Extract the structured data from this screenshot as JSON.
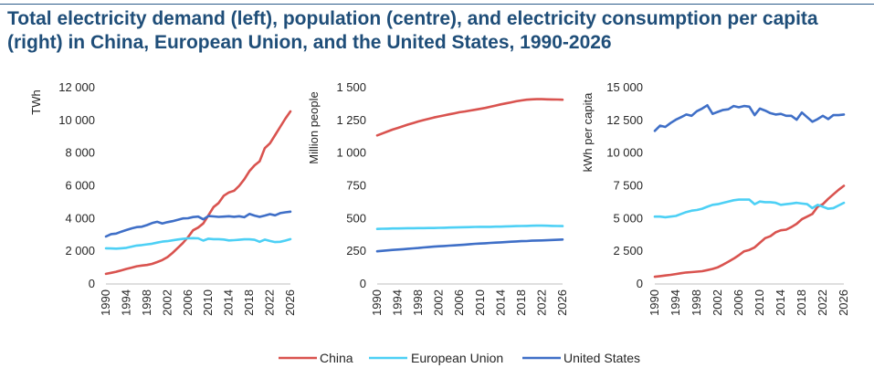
{
  "title": "Total electricity demand (left), population (centre), and electricity consumption per capita (right) in China, European Union, and the United States, 1990-2026",
  "colors": {
    "China": "#d9534f",
    "European Union": "#4dd0f5",
    "United States": "#3f6fc7",
    "axis": "#bfbfbf"
  },
  "legend": {
    "placement": "bottom-center",
    "entries": [
      "China",
      "European Union",
      "United States"
    ]
  },
  "chart_data": [
    {
      "type": "line",
      "title": "",
      "ylabel": "TWh",
      "xlabel": "",
      "ylim": [
        0,
        12000
      ],
      "yticks": [
        0,
        2000,
        4000,
        6000,
        8000,
        10000,
        12000
      ],
      "ytick_labels": [
        "0",
        "2 000",
        "4 000",
        "6 000",
        "8 000",
        "10 000",
        "12 000"
      ],
      "xlim": [
        1990,
        2026
      ],
      "xticks": [
        1990,
        1994,
        1998,
        2002,
        2006,
        2010,
        2014,
        2018,
        2022,
        2026
      ],
      "grid": false,
      "x": [
        1990,
        1991,
        1992,
        1993,
        1994,
        1995,
        1996,
        1997,
        1998,
        1999,
        2000,
        2001,
        2002,
        2003,
        2004,
        2005,
        2006,
        2007,
        2008,
        2009,
        2010,
        2011,
        2012,
        2013,
        2014,
        2015,
        2016,
        2017,
        2018,
        2019,
        2020,
        2021,
        2022,
        2023,
        2024,
        2025,
        2026
      ],
      "series": [
        {
          "name": "China",
          "values": [
            620,
            680,
            750,
            830,
            920,
            1000,
            1080,
            1130,
            1160,
            1230,
            1340,
            1460,
            1640,
            1900,
            2200,
            2500,
            2860,
            3280,
            3450,
            3700,
            4200,
            4700,
            4950,
            5400,
            5600,
            5700,
            6000,
            6400,
            6900,
            7250,
            7500,
            8300,
            8600,
            9100,
            9600,
            10100,
            10550
          ]
        },
        {
          "name": "European Union",
          "values": [
            2180,
            2170,
            2160,
            2180,
            2210,
            2280,
            2350,
            2380,
            2420,
            2460,
            2530,
            2590,
            2620,
            2670,
            2720,
            2760,
            2790,
            2800,
            2790,
            2650,
            2770,
            2740,
            2740,
            2720,
            2660,
            2680,
            2700,
            2730,
            2730,
            2700,
            2580,
            2710,
            2630,
            2560,
            2580,
            2650,
            2740
          ]
        },
        {
          "name": "United States",
          "values": [
            2900,
            3050,
            3080,
            3200,
            3300,
            3400,
            3480,
            3500,
            3600,
            3720,
            3800,
            3700,
            3780,
            3840,
            3920,
            4010,
            4020,
            4090,
            4120,
            3950,
            4150,
            4130,
            4100,
            4120,
            4140,
            4110,
            4140,
            4080,
            4280,
            4180,
            4100,
            4180,
            4270,
            4200,
            4330,
            4380,
            4420
          ]
        }
      ]
    },
    {
      "type": "line",
      "title": "",
      "ylabel": "Million people",
      "xlabel": "",
      "ylim": [
        0,
        1500
      ],
      "yticks": [
        0,
        250,
        500,
        750,
        1000,
        1250,
        1500
      ],
      "ytick_labels": [
        "0",
        "250",
        "500",
        "750",
        "1 000",
        "1 250",
        "1 500"
      ],
      "xlim": [
        1990,
        2026
      ],
      "xticks": [
        1990,
        1994,
        1998,
        2002,
        2006,
        2010,
        2014,
        2018,
        2022,
        2026
      ],
      "grid": false,
      "x": [
        1990,
        1991,
        1992,
        1993,
        1994,
        1995,
        1996,
        1997,
        1998,
        1999,
        2000,
        2001,
        2002,
        2003,
        2004,
        2005,
        2006,
        2007,
        2008,
        2009,
        2010,
        2011,
        2012,
        2013,
        2014,
        2015,
        2016,
        2017,
        2018,
        2019,
        2020,
        2021,
        2022,
        2023,
        2024,
        2025,
        2026
      ],
      "series": [
        {
          "name": "China",
          "values": [
            1135,
            1150,
            1165,
            1180,
            1192,
            1205,
            1218,
            1230,
            1242,
            1252,
            1262,
            1272,
            1280,
            1288,
            1296,
            1304,
            1312,
            1318,
            1325,
            1331,
            1338,
            1345,
            1354,
            1363,
            1372,
            1380,
            1388,
            1396,
            1402,
            1408,
            1411,
            1412,
            1412,
            1411,
            1410,
            1409,
            1408
          ]
        },
        {
          "name": "European Union",
          "values": [
            421,
            422,
            423,
            424,
            424,
            425,
            426,
            426,
            427,
            427,
            428,
            428,
            429,
            430,
            431,
            432,
            433,
            434,
            435,
            436,
            437,
            437,
            437,
            438,
            438,
            440,
            441,
            442,
            443,
            444,
            445,
            446,
            446,
            445,
            444,
            443,
            442
          ]
        },
        {
          "name": "United States",
          "values": [
            250,
            253,
            257,
            260,
            263,
            266,
            269,
            272,
            275,
            279,
            282,
            285,
            288,
            290,
            293,
            295,
            298,
            301,
            304,
            307,
            309,
            311,
            314,
            316,
            318,
            320,
            323,
            325,
            327,
            328,
            331,
            332,
            333,
            334,
            336,
            338,
            340
          ]
        }
      ]
    },
    {
      "type": "line",
      "title": "",
      "ylabel": "kWh per capita",
      "xlabel": "",
      "ylim": [
        0,
        15000
      ],
      "yticks": [
        0,
        2500,
        5000,
        7500,
        10000,
        12500,
        15000
      ],
      "ytick_labels": [
        "0",
        "2 500",
        "5 000",
        "7 500",
        "10 000",
        "12 500",
        "15 000"
      ],
      "xlim": [
        1990,
        2026
      ],
      "xticks": [
        1990,
        1994,
        1998,
        2002,
        2006,
        2010,
        2014,
        2018,
        2022,
        2026
      ],
      "grid": false,
      "x": [
        1990,
        1991,
        1992,
        1993,
        1994,
        1995,
        1996,
        1997,
        1998,
        1999,
        2000,
        2001,
        2002,
        2003,
        2004,
        2005,
        2006,
        2007,
        2008,
        2009,
        2010,
        2011,
        2012,
        2013,
        2014,
        2015,
        2016,
        2017,
        2018,
        2019,
        2020,
        2021,
        2022,
        2023,
        2024,
        2025,
        2026
      ],
      "series": [
        {
          "name": "China",
          "values": [
            550,
            600,
            650,
            700,
            760,
            820,
            880,
            910,
            940,
            980,
            1060,
            1150,
            1280,
            1480,
            1700,
            1930,
            2200,
            2500,
            2600,
            2800,
            3150,
            3500,
            3650,
            3950,
            4100,
            4150,
            4350,
            4600,
            4950,
            5150,
            5350,
            5900,
            6100,
            6500,
            6850,
            7200,
            7500
          ]
        },
        {
          "name": "European Union",
          "values": [
            5150,
            5150,
            5100,
            5150,
            5200,
            5350,
            5500,
            5600,
            5650,
            5750,
            5900,
            6050,
            6100,
            6200,
            6300,
            6400,
            6450,
            6450,
            6450,
            6100,
            6300,
            6250,
            6250,
            6200,
            6050,
            6100,
            6150,
            6200,
            6150,
            6100,
            5800,
            6050,
            5900,
            5750,
            5800,
            6000,
            6200
          ]
        },
        {
          "name": "United States",
          "values": [
            11700,
            12100,
            12000,
            12300,
            12550,
            12750,
            12950,
            12850,
            13200,
            13400,
            13650,
            13000,
            13150,
            13300,
            13350,
            13600,
            13500,
            13600,
            13550,
            12900,
            13400,
            13250,
            13050,
            12950,
            13000,
            12850,
            12850,
            12550,
            13100,
            12750,
            12400,
            12600,
            12850,
            12600,
            12900,
            12900,
            12950
          ]
        }
      ]
    }
  ]
}
